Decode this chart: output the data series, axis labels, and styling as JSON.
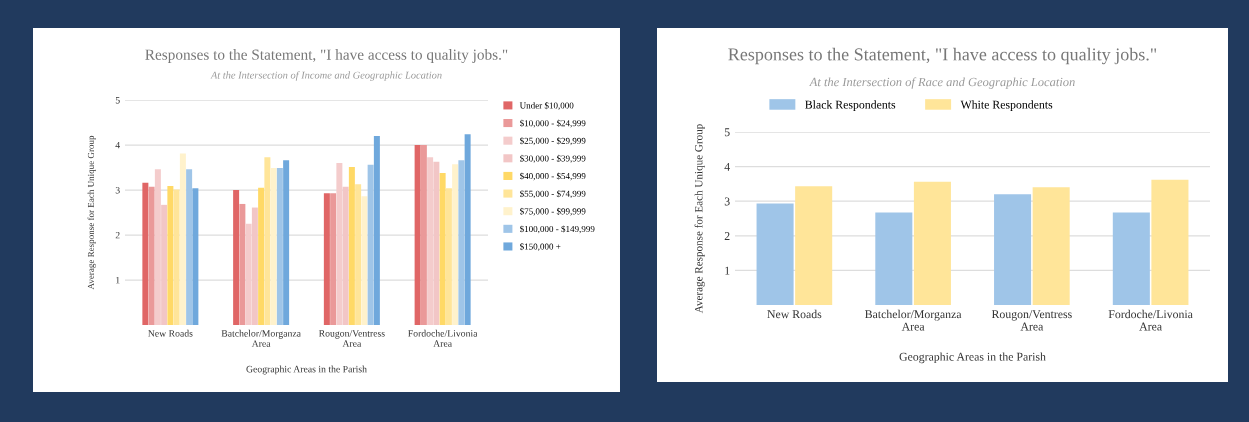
{
  "chart_data": [
    {
      "type": "bar",
      "title": "Responses to the Statement, \"I have access to quality jobs.\"",
      "subtitle": "At the Intersection of Income and Geographic Location",
      "xlabel": "Geographic Areas in the Parish",
      "ylabel": "Average Response for Each Unique Group",
      "categories": [
        "New Roads",
        "Batchelor/Morganza\nArea",
        "Rougon/Ventress\nArea",
        "Fordoche/Livonia\nArea"
      ],
      "series": [
        {
          "name": "Under $10,000",
          "color": "#e06666",
          "values": [
            3.16,
            3.0,
            2.93,
            4.0
          ]
        },
        {
          "name": "$10,000 - $24,999",
          "color": "#ea9999",
          "values": [
            3.07,
            2.69,
            2.93,
            4.0
          ]
        },
        {
          "name": "$25,000 - $29,999",
          "color": "#f4cccc",
          "values": [
            3.46,
            2.25,
            3.6,
            3.73
          ]
        },
        {
          "name": "$30,000 - $39,999",
          "color": "#f2c6c6",
          "values": [
            2.67,
            2.61,
            3.07,
            3.63
          ]
        },
        {
          "name": "$40,000 - $54,999",
          "color": "#ffd966",
          "values": [
            3.09,
            3.05,
            3.51,
            3.38
          ]
        },
        {
          "name": "$55,000 - $74,999",
          "color": "#ffe599",
          "values": [
            3.01,
            3.73,
            3.13,
            3.04
          ]
        },
        {
          "name": "$75,000 - $99,999",
          "color": "#fff2cc",
          "values": [
            3.81,
            3.49,
            2.86,
            3.57
          ]
        },
        {
          "name": "$100,000 - $149,999",
          "color": "#9fc5e8",
          "values": [
            3.46,
            3.49,
            3.56,
            3.66
          ]
        },
        {
          "name": "$150,000 +",
          "color": "#6fa8dc",
          "values": [
            3.04,
            3.66,
            4.2,
            4.24
          ]
        }
      ],
      "ylim": [
        0,
        5
      ],
      "yticks": [
        1,
        2,
        3,
        4,
        5
      ],
      "grid": "y",
      "legend": "right"
    },
    {
      "type": "bar",
      "title": "Responses to the Statement, \"I have access to quality jobs.\"",
      "subtitle": "At the Intersection of Race and Geographic Location",
      "xlabel": "Geographic Areas in the Parish",
      "ylabel": "Average Response for Each Unique Group",
      "categories": [
        "New Roads",
        "Batchelor/Morganza\nArea",
        "Rougon/Ventress\nArea",
        "Fordoche/Livonia\nArea"
      ],
      "series": [
        {
          "name": "Black Respondents",
          "color": "#9fc5e8",
          "values": [
            2.93,
            2.67,
            3.2,
            2.67
          ]
        },
        {
          "name": "White Respondents",
          "color": "#ffe599",
          "values": [
            3.43,
            3.56,
            3.4,
            3.62
          ]
        }
      ],
      "ylim": [
        0,
        5
      ],
      "yticks": [
        1,
        2,
        3,
        4,
        5
      ],
      "grid": "y",
      "legend": "top"
    }
  ]
}
